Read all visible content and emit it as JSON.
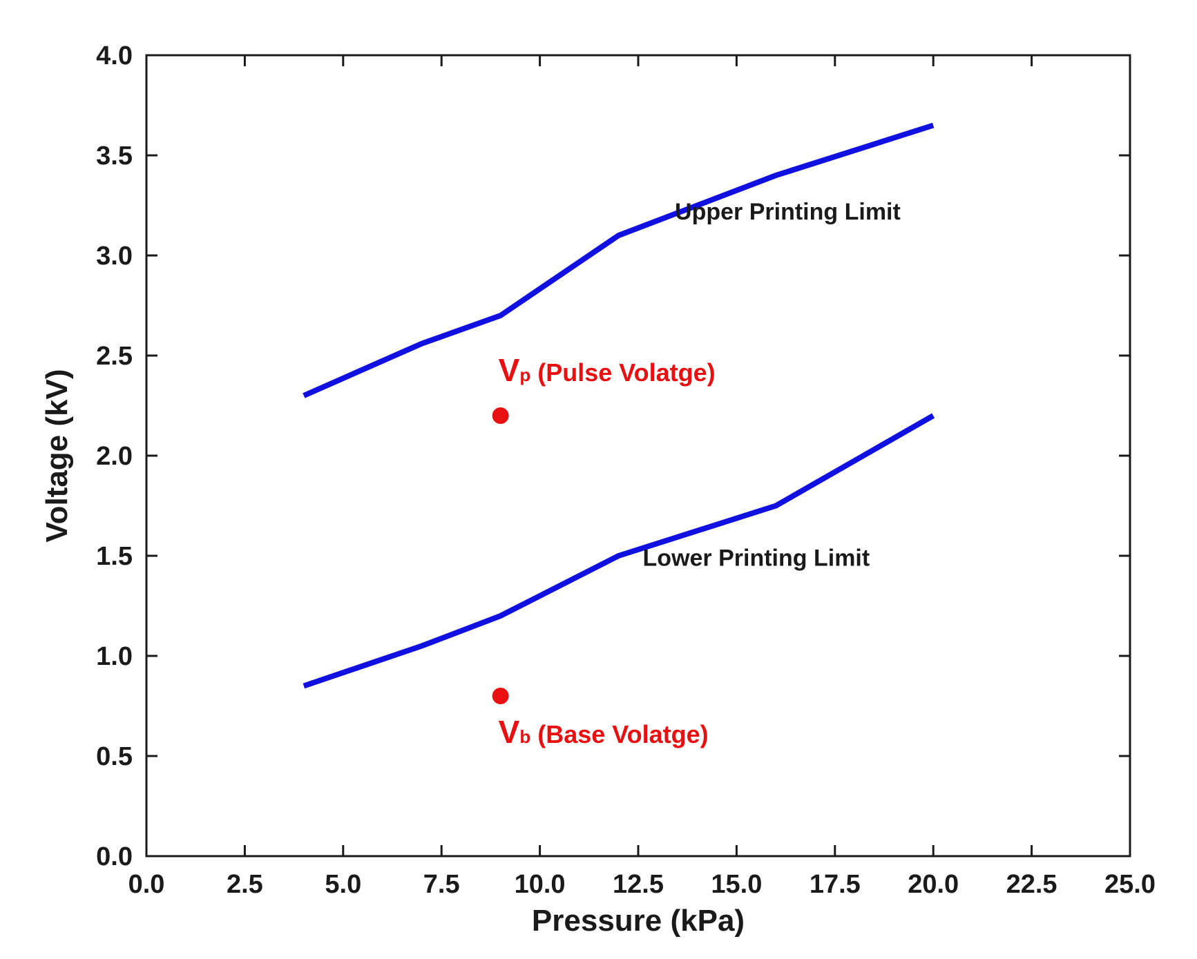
{
  "chart_data": {
    "type": "line",
    "xlabel": "Pressure (kPa)",
    "ylabel": "Voltage (kV)",
    "xlim": [
      0.0,
      25.0
    ],
    "ylim": [
      0.0,
      4.0
    ],
    "x_ticks": [
      "0.0",
      "2.5",
      "5.0",
      "7.5",
      "10.0",
      "12.5",
      "15.0",
      "17.5",
      "20.0",
      "22.5",
      "25.0"
    ],
    "y_ticks": [
      "0.0",
      "0.5",
      "1.0",
      "1.5",
      "2.0",
      "2.5",
      "3.0",
      "3.5",
      "4.0"
    ],
    "grid": false,
    "series": [
      {
        "name": "Upper Printing Limit",
        "color": "#1010e0",
        "points": [
          [
            4.0,
            2.3
          ],
          [
            7.0,
            2.56
          ],
          [
            9.0,
            2.7
          ],
          [
            12.0,
            3.1
          ],
          [
            16.0,
            3.4
          ],
          [
            20.0,
            3.65
          ]
        ]
      },
      {
        "name": "Lower Printing Limit",
        "color": "#1010e0",
        "points": [
          [
            4.0,
            0.85
          ],
          [
            7.0,
            1.05
          ],
          [
            9.0,
            1.2
          ],
          [
            12.0,
            1.5
          ],
          [
            16.0,
            1.75
          ],
          [
            20.0,
            2.2
          ]
        ]
      }
    ],
    "points": [
      {
        "name": "Vp",
        "main": "V",
        "sub": "p",
        "rest": " (Pulse Volatge)",
        "x": 9.0,
        "y": 2.2,
        "color": "#e81010"
      },
      {
        "name": "Vb",
        "main": "V",
        "sub": "b",
        "rest": " (Base Volatge)",
        "x": 9.0,
        "y": 0.8,
        "color": "#e81010"
      }
    ]
  }
}
